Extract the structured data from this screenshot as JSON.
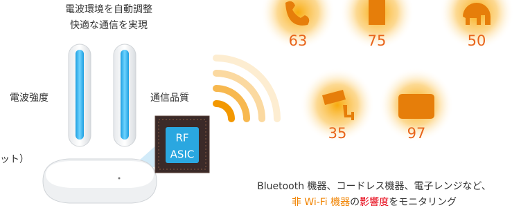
{
  "header": {
    "lines": [
      "電波環境を自動調整",
      "快適な通信を実現"
    ]
  },
  "antenna_labels": {
    "left": "電波強度",
    "right": "通信品質"
  },
  "cut_text": "ット）",
  "chip": {
    "lines": [
      "RF",
      "ASIC"
    ]
  },
  "devices": [
    {
      "value": 63
    },
    {
      "value": 75
    },
    {
      "value": 50
    },
    {
      "value": 35
    },
    {
      "value": 97
    }
  ],
  "caption": {
    "line1": "Bluetooth 機器、コードレス機器、電子レンジなど、",
    "line2": [
      {
        "text": "非 Wi-Fi 機器",
        "color": "#f08300"
      },
      {
        "text": "の",
        "color": "#333333"
      },
      {
        "text": "影響度",
        "color": "#e60012"
      },
      {
        "text": "をモニタリング",
        "color": "#333333"
      }
    ]
  }
}
